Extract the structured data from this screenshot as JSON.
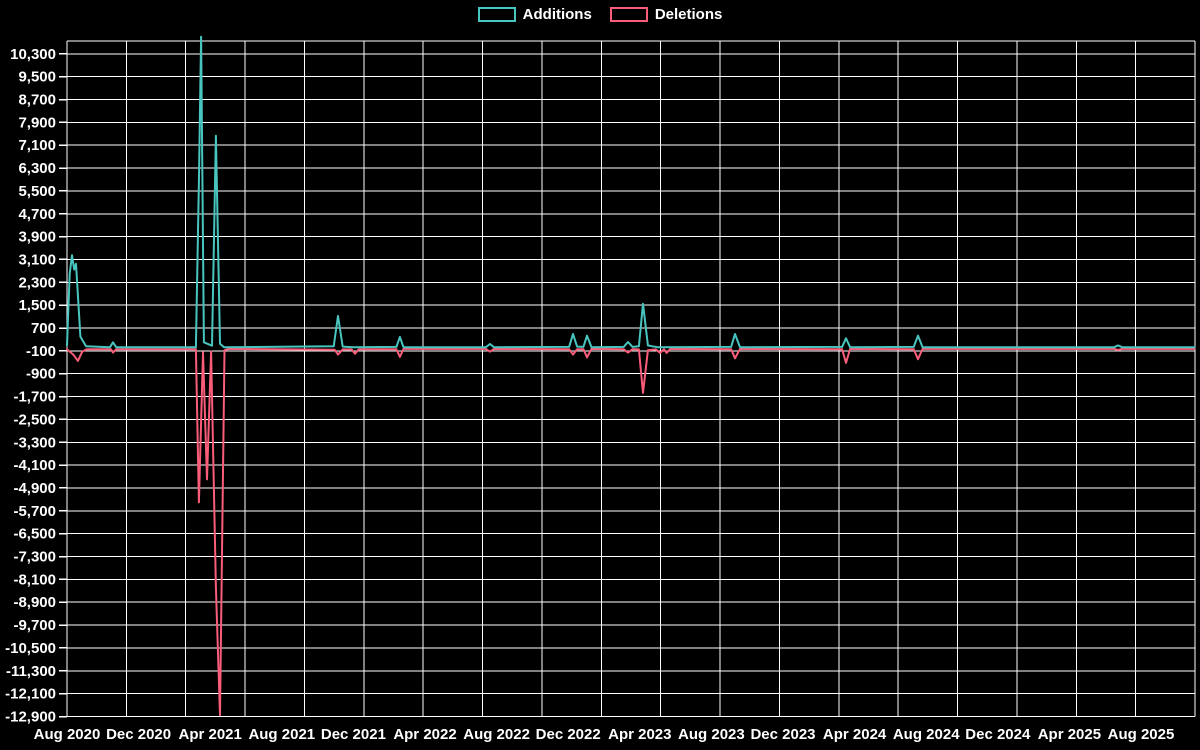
{
  "legend": {
    "items": [
      {
        "id": "additions",
        "label": "Additions",
        "color": "#49c5bf"
      },
      {
        "id": "deletions",
        "label": "Deletions",
        "color": "#f95d79"
      }
    ]
  },
  "chart_data": {
    "type": "line",
    "title": "",
    "background_color": "#000000",
    "grid_color": "#ffffff",
    "text_color": "#ffffff",
    "grid": true,
    "legend_position": "top-center",
    "x_axis": {
      "unit": "months_since_Aug_2020",
      "range_months": [
        0,
        63
      ],
      "tick_months": [
        0,
        4,
        8,
        12,
        16,
        20,
        24,
        28,
        32,
        36,
        40,
        44,
        48,
        52,
        56,
        60
      ],
      "tick_labels": [
        "Aug 2020",
        "Dec 2020",
        "Apr 2021",
        "Aug 2021",
        "Dec 2021",
        "Apr 2022",
        "Aug 2022",
        "Dec 2022",
        "Apr 2023",
        "Aug 2023",
        "Dec 2023",
        "Apr 2024",
        "Aug 2024",
        "Dec 2024",
        "Apr 2025",
        "Aug 2025"
      ],
      "vertical_gridline_count": 20
    },
    "y_axis": {
      "min": -12900,
      "max": 10300,
      "step": 800,
      "tick_labels": [
        "10,300",
        "9,500",
        "8,700",
        "7,900",
        "7,100",
        "6,300",
        "5,500",
        "4,700",
        "3,900",
        "3,100",
        "2,300",
        "1,500",
        "700",
        "-100",
        "-900",
        "-1,700",
        "-2,500",
        "-3,300",
        "-4,100",
        "-4,900",
        "-5,700",
        "-6,500",
        "-7,300",
        "-8,100",
        "-8,900",
        "-9,700",
        "-10,500",
        "-11,300",
        "-12,100",
        "-12,900"
      ]
    },
    "series": [
      {
        "name": "Additions",
        "color": "#49c5bf",
        "points": [
          [
            0,
            100
          ],
          [
            0.15,
            2600
          ],
          [
            0.28,
            3250
          ],
          [
            0.4,
            2750
          ],
          [
            0.5,
            2950
          ],
          [
            0.75,
            400
          ],
          [
            1.06,
            60
          ],
          [
            2.4,
            30
          ],
          [
            2.57,
            200
          ],
          [
            2.75,
            30
          ],
          [
            7.2,
            30
          ],
          [
            7.37,
            5800
          ],
          [
            7.49,
            10900
          ],
          [
            7.65,
            200
          ],
          [
            8.1,
            80
          ],
          [
            8.32,
            7430
          ],
          [
            8.55,
            150
          ],
          [
            8.77,
            30
          ],
          [
            14.9,
            60
          ],
          [
            15.14,
            1120
          ],
          [
            15.4,
            50
          ],
          [
            16.0,
            30
          ],
          [
            18.4,
            40
          ],
          [
            18.6,
            390
          ],
          [
            18.8,
            30
          ],
          [
            23.4,
            30
          ],
          [
            23.63,
            140
          ],
          [
            23.85,
            30
          ],
          [
            28.05,
            40
          ],
          [
            28.27,
            490
          ],
          [
            28.5,
            50
          ],
          [
            28.85,
            40
          ],
          [
            29.05,
            430
          ],
          [
            29.3,
            30
          ],
          [
            31.1,
            40
          ],
          [
            31.34,
            210
          ],
          [
            31.6,
            40
          ],
          [
            31.95,
            60
          ],
          [
            32.18,
            1550
          ],
          [
            32.45,
            90
          ],
          [
            32.7,
            60
          ],
          [
            33.0,
            30
          ],
          [
            37.1,
            40
          ],
          [
            37.32,
            490
          ],
          [
            37.6,
            30
          ],
          [
            43.3,
            40
          ],
          [
            43.52,
            340
          ],
          [
            43.75,
            30
          ],
          [
            47.3,
            40
          ],
          [
            47.54,
            430
          ],
          [
            47.8,
            30
          ],
          [
            58.5,
            30
          ],
          [
            58.72,
            90
          ],
          [
            58.95,
            30
          ],
          [
            63,
            30
          ]
        ]
      },
      {
        "name": "Deletions",
        "color": "#f95d79",
        "points": [
          [
            0,
            -50
          ],
          [
            0.35,
            -230
          ],
          [
            0.61,
            -450
          ],
          [
            0.85,
            -130
          ],
          [
            1.1,
            -40
          ],
          [
            2.45,
            -40
          ],
          [
            2.57,
            -160
          ],
          [
            2.75,
            -40
          ],
          [
            7.2,
            -40
          ],
          [
            7.37,
            -5400
          ],
          [
            7.6,
            -150
          ],
          [
            7.82,
            -4600
          ],
          [
            8.05,
            -120
          ],
          [
            8.32,
            -8380
          ],
          [
            8.55,
            -12850
          ],
          [
            8.8,
            -80
          ],
          [
            9.0,
            -30
          ],
          [
            14.95,
            -60
          ],
          [
            15.14,
            -230
          ],
          [
            15.4,
            -50
          ],
          [
            15.9,
            -50
          ],
          [
            16.09,
            -200
          ],
          [
            16.3,
            -40
          ],
          [
            18.4,
            -40
          ],
          [
            18.6,
            -310
          ],
          [
            18.8,
            -30
          ],
          [
            23.4,
            -30
          ],
          [
            23.63,
            -130
          ],
          [
            23.85,
            -30
          ],
          [
            28.05,
            -40
          ],
          [
            28.27,
            -230
          ],
          [
            28.5,
            -40
          ],
          [
            28.85,
            -40
          ],
          [
            29.05,
            -330
          ],
          [
            29.3,
            -30
          ],
          [
            31.1,
            -40
          ],
          [
            31.34,
            -160
          ],
          [
            31.6,
            -40
          ],
          [
            31.95,
            -50
          ],
          [
            32.18,
            -1570
          ],
          [
            32.45,
            -80
          ],
          [
            32.9,
            -50
          ],
          [
            33.13,
            -170
          ],
          [
            33.35,
            -40
          ],
          [
            33.5,
            -170
          ],
          [
            33.7,
            -30
          ],
          [
            37.1,
            -40
          ],
          [
            37.32,
            -360
          ],
          [
            37.6,
            -30
          ],
          [
            43.3,
            -40
          ],
          [
            43.52,
            -520
          ],
          [
            43.75,
            -30
          ],
          [
            47.3,
            -40
          ],
          [
            47.54,
            -390
          ],
          [
            47.8,
            -30
          ],
          [
            58.5,
            -30
          ],
          [
            58.72,
            -70
          ],
          [
            58.95,
            -30
          ],
          [
            63,
            -30
          ]
        ]
      }
    ]
  }
}
